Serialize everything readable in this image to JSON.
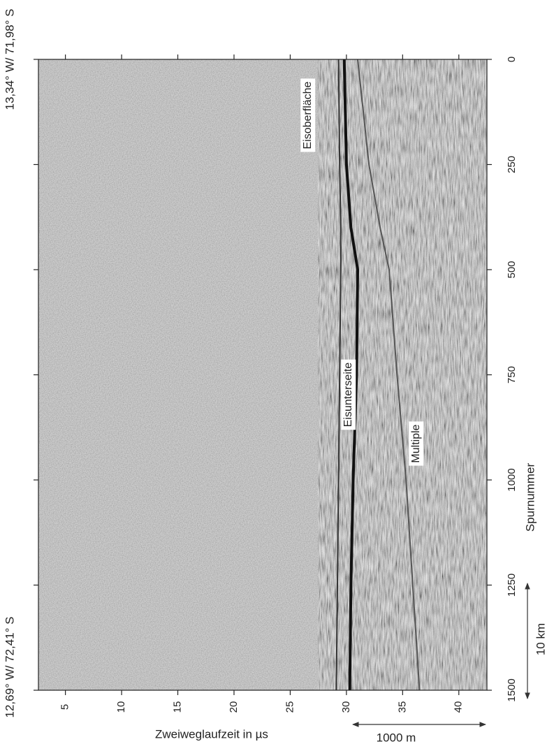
{
  "chart_data": {
    "type": "radargram",
    "start_position": "13,34° W/ 71,98° S",
    "end_position": "12,69° W/ 72,41° S",
    "x_label": "Spurnummer",
    "y_label": "Zweiweglaufzeit in µs",
    "scale_bars": [
      {
        "label": "10 km"
      },
      {
        "label": "1000 m"
      }
    ],
    "annotations": [
      "Eisoberfläche",
      "Eisunterseite",
      "Multiple"
    ],
    "x": [
      0,
      250,
      400,
      500,
      750,
      1000,
      1250,
      1500
    ],
    "series": [
      {
        "color": "#333333",
        "values": [
          29.3,
          29.4,
          29.5,
          29.5,
          29.4,
          29.3,
          29.2,
          29.1
        ]
      },
      {
        "color": "#111111",
        "values": [
          29.8,
          30.0,
          30.4,
          31.0,
          30.9,
          30.6,
          30.4,
          30.3
        ]
      },
      {
        "color": "#555555",
        "values": [
          31.0,
          32.0,
          33.0,
          33.8,
          34.5,
          35.3,
          35.9,
          36.5
        ]
      }
    ],
    "xlim": [
      0,
      1500
    ],
    "xticks": [
      0,
      250,
      500,
      750,
      1000,
      1250,
      1500
    ],
    "ylim": [
      2.6,
      42.5
    ],
    "yticks": [
      5,
      10,
      15,
      20,
      25,
      30,
      35,
      40
    ]
  }
}
